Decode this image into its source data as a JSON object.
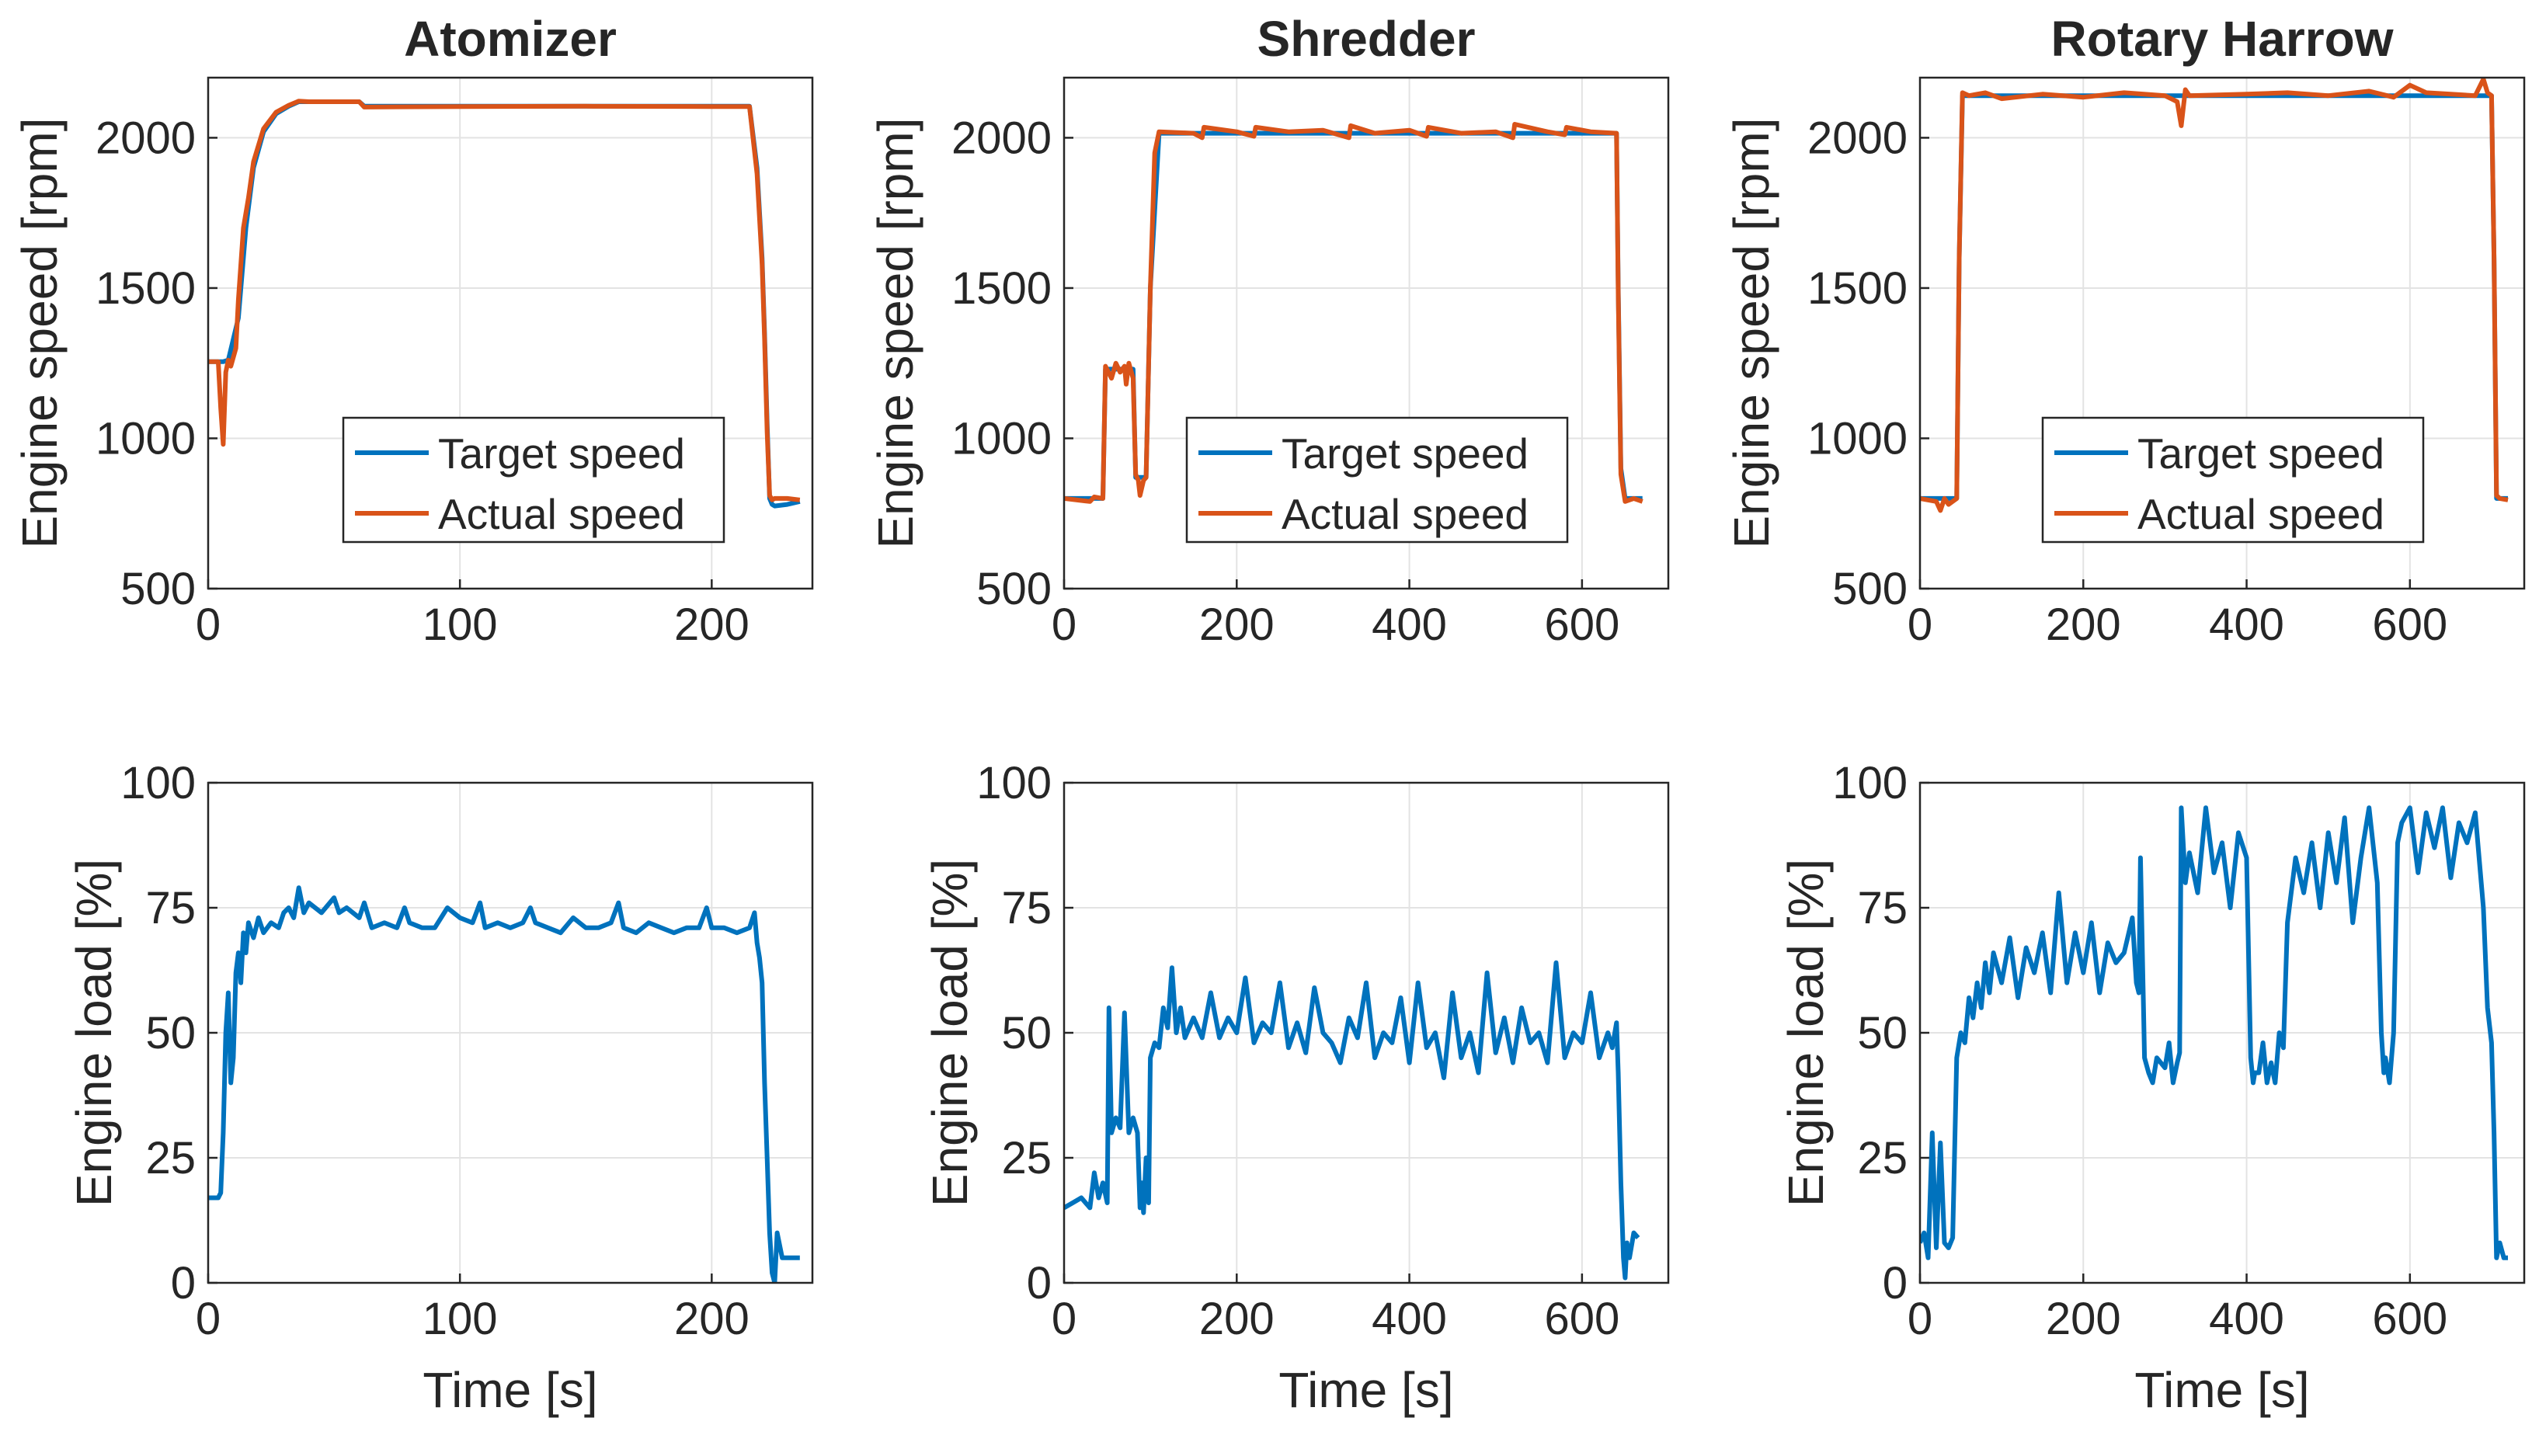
{
  "colors": {
    "target": "#0072BD",
    "actual": "#D95319",
    "axis": "#262626",
    "grid": "#e3e3e3"
  },
  "chart_data": [
    {
      "type": "line",
      "title": "Atomizer",
      "xlabel": "",
      "ylabel": "Engine speed [rpm]",
      "xlim": [
        0,
        240
      ],
      "ylim": [
        500,
        2200
      ],
      "xticks": [
        "0",
        "100",
        "200"
      ],
      "yticks": [
        "500",
        "1000",
        "1500",
        "2000"
      ],
      "legend": [
        "Target speed",
        "Actual speed"
      ],
      "legend_position": "bottom-center",
      "series": [
        {
          "name": "Target speed",
          "x": [
            0,
            6,
            8,
            12,
            15,
            18,
            22,
            27,
            32,
            36,
            40,
            60,
            62,
            100,
            150,
            200,
            215,
            218,
            220,
            221,
            222,
            223,
            224,
            225,
            230,
            235
          ],
          "y": [
            1255,
            1255,
            1260,
            1400,
            1700,
            1900,
            2020,
            2080,
            2105,
            2120,
            2120,
            2120,
            2105,
            2105,
            2105,
            2105,
            2105,
            1900,
            1600,
            1350,
            1050,
            800,
            780,
            775,
            780,
            790
          ]
        },
        {
          "name": "Actual speed",
          "x": [
            0,
            4,
            5,
            6,
            7,
            8,
            9,
            11,
            12,
            14,
            16,
            18,
            22,
            27,
            32,
            36,
            40,
            60,
            62,
            100,
            150,
            200,
            215,
            218,
            220,
            221,
            222,
            223,
            224,
            225,
            230,
            235
          ],
          "y": [
            1255,
            1255,
            1100,
            980,
            1220,
            1260,
            1240,
            1300,
            1460,
            1700,
            1800,
            1920,
            2030,
            2085,
            2108,
            2122,
            2120,
            2120,
            2102,
            2104,
            2105,
            2104,
            2104,
            1880,
            1580,
            1330,
            1020,
            810,
            795,
            800,
            800,
            795
          ]
        }
      ]
    },
    {
      "type": "line",
      "title": "Shredder",
      "xlabel": "",
      "ylabel": "Engine speed [rpm]",
      "xlim": [
        0,
        700
      ],
      "ylim": [
        500,
        2200
      ],
      "xticks": [
        "0",
        "200",
        "400",
        "600"
      ],
      "yticks": [
        "500",
        "1000",
        "1500",
        "2000"
      ],
      "legend": [
        "Target speed",
        "Actual speed"
      ],
      "legend_position": "bottom-right",
      "series": [
        {
          "name": "Target speed",
          "x": [
            0,
            45,
            48,
            80,
            83,
            95,
            100,
            110,
            640,
            642,
            645,
            650,
            670
          ],
          "y": [
            800,
            800,
            1230,
            1230,
            870,
            870,
            1500,
            2015,
            2015,
            1500,
            900,
            800,
            800
          ]
        },
        {
          "name": "Actual speed",
          "x": [
            0,
            30,
            35,
            45,
            48,
            55,
            60,
            65,
            70,
            72,
            75,
            80,
            83,
            86,
            88,
            92,
            95,
            100,
            105,
            110,
            150,
            160,
            162,
            200,
            220,
            222,
            260,
            300,
            330,
            332,
            360,
            400,
            420,
            422,
            460,
            500,
            520,
            522,
            560,
            580,
            582,
            610,
            640,
            642,
            645,
            650,
            660,
            670
          ],
          "y": [
            800,
            790,
            805,
            800,
            1240,
            1200,
            1250,
            1220,
            1240,
            1180,
            1250,
            1200,
            880,
            860,
            810,
            860,
            870,
            1500,
            1950,
            2020,
            2015,
            2000,
            2035,
            2020,
            2005,
            2035,
            2020,
            2025,
            2000,
            2040,
            2015,
            2025,
            2005,
            2035,
            2015,
            2020,
            2000,
            2045,
            2020,
            2010,
            2035,
            2020,
            2015,
            1480,
            880,
            790,
            800,
            790
          ]
        }
      ]
    },
    {
      "type": "line",
      "title": "Rotary Harrow",
      "xlabel": "",
      "ylabel": "Engine speed [rpm]",
      "xlim": [
        0,
        740
      ],
      "ylim": [
        500,
        2200
      ],
      "xticks": [
        "0",
        "200",
        "400",
        "600"
      ],
      "yticks": [
        "500",
        "1000",
        "1500",
        "2000"
      ],
      "legend": [
        "Target speed",
        "Actual speed"
      ],
      "legend_position": "bottom-right",
      "series": [
        {
          "name": "Target speed",
          "x": [
            0,
            45,
            48,
            52,
            700,
            703,
            706,
            720
          ],
          "y": [
            800,
            800,
            1600,
            2140,
            2140,
            1600,
            800,
            800
          ]
        },
        {
          "name": "Actual speed",
          "x": [
            0,
            20,
            25,
            30,
            35,
            45,
            48,
            52,
            60,
            80,
            100,
            150,
            200,
            250,
            300,
            315,
            320,
            325,
            330,
            400,
            450,
            500,
            550,
            580,
            600,
            620,
            650,
            680,
            690,
            695,
            700,
            703,
            706,
            710,
            720
          ],
          "y": [
            800,
            790,
            760,
            800,
            780,
            800,
            1600,
            2150,
            2140,
            2150,
            2130,
            2145,
            2135,
            2150,
            2140,
            2120,
            2040,
            2160,
            2140,
            2145,
            2150,
            2140,
            2155,
            2135,
            2175,
            2150,
            2145,
            2140,
            2195,
            2150,
            2140,
            1600,
            810,
            800,
            795
          ]
        }
      ]
    },
    {
      "type": "line",
      "title": "",
      "xlabel": "Time [s]",
      "ylabel": "Engine load [%]",
      "xlim": [
        0,
        240
      ],
      "ylim": [
        0,
        100
      ],
      "xticks": [
        "0",
        "100",
        "200"
      ],
      "yticks": [
        "0",
        "25",
        "50",
        "75",
        "100"
      ],
      "series": [
        {
          "name": "Engine load",
          "x": [
            0,
            4,
            5,
            6,
            7,
            8,
            9,
            10,
            11,
            12,
            13,
            14,
            15,
            16,
            18,
            20,
            22,
            25,
            28,
            30,
            32,
            34,
            36,
            38,
            40,
            45,
            50,
            52,
            55,
            60,
            62,
            65,
            70,
            75,
            78,
            80,
            85,
            90,
            95,
            100,
            105,
            108,
            110,
            115,
            120,
            125,
            128,
            130,
            135,
            140,
            145,
            150,
            155,
            160,
            163,
            165,
            170,
            175,
            180,
            185,
            190,
            195,
            198,
            200,
            205,
            210,
            215,
            217,
            218,
            219,
            220,
            221,
            222,
            223,
            224,
            225,
            226,
            228,
            230,
            235
          ],
          "y": [
            17,
            17,
            18,
            30,
            50,
            58,
            40,
            45,
            62,
            66,
            60,
            70,
            66,
            72,
            69,
            73,
            70,
            72,
            71,
            74,
            75,
            73,
            79,
            74,
            76,
            74,
            77,
            74,
            75,
            73,
            76,
            71,
            72,
            71,
            75,
            72,
            71,
            71,
            75,
            73,
            72,
            76,
            71,
            72,
            71,
            72,
            75,
            72,
            71,
            70,
            73,
            71,
            71,
            72,
            76,
            71,
            70,
            72,
            71,
            70,
            71,
            71,
            75,
            71,
            71,
            70,
            71,
            74,
            68,
            65,
            60,
            40,
            25,
            10,
            2,
            0,
            10,
            5,
            5,
            5
          ]
        }
      ]
    },
    {
      "type": "line",
      "title": "",
      "xlabel": "Time [s]",
      "ylabel": "Engine load [%]",
      "xlim": [
        0,
        700
      ],
      "ylim": [
        0,
        100
      ],
      "xticks": [
        "0",
        "200",
        "400",
        "600"
      ],
      "yticks": [
        "0",
        "25",
        "50",
        "75",
        "100"
      ],
      "series": [
        {
          "name": "Engine load",
          "x": [
            0,
            10,
            20,
            30,
            35,
            40,
            45,
            50,
            52,
            55,
            60,
            65,
            70,
            75,
            80,
            85,
            88,
            90,
            92,
            95,
            98,
            100,
            105,
            110,
            115,
            120,
            125,
            130,
            135,
            140,
            150,
            160,
            170,
            180,
            190,
            200,
            210,
            220,
            230,
            240,
            250,
            260,
            270,
            280,
            290,
            300,
            310,
            320,
            330,
            340,
            350,
            360,
            370,
            380,
            390,
            400,
            410,
            420,
            430,
            440,
            450,
            460,
            470,
            480,
            490,
            500,
            510,
            520,
            530,
            540,
            550,
            560,
            570,
            580,
            590,
            600,
            610,
            620,
            630,
            635,
            640,
            642,
            645,
            648,
            650,
            652,
            655,
            660,
            665
          ],
          "y": [
            15,
            16,
            17,
            15,
            22,
            17,
            20,
            16,
            55,
            30,
            33,
            31,
            54,
            30,
            33,
            30,
            15,
            20,
            14,
            25,
            16,
            45,
            48,
            47,
            55,
            51,
            63,
            50,
            55,
            49,
            53,
            49,
            58,
            49,
            53,
            50,
            61,
            48,
            52,
            50,
            60,
            47,
            52,
            46,
            59,
            50,
            48,
            44,
            53,
            49,
            60,
            45,
            50,
            48,
            57,
            44,
            60,
            47,
            50,
            41,
            58,
            45,
            50,
            42,
            62,
            46,
            53,
            44,
            55,
            48,
            50,
            44,
            64,
            45,
            50,
            48,
            58,
            45,
            50,
            47,
            52,
            42,
            20,
            5,
            1,
            8,
            5,
            10,
            9
          ]
        }
      ]
    },
    {
      "type": "line",
      "title": "",
      "xlabel": "Time [s]",
      "ylabel": "Engine load [%]",
      "xlim": [
        0,
        740
      ],
      "ylim": [
        0,
        100
      ],
      "xticks": [
        "0",
        "200",
        "400",
        "600"
      ],
      "yticks": [
        "0",
        "25",
        "50",
        "75",
        "100"
      ],
      "series": [
        {
          "name": "Engine load",
          "x": [
            0,
            5,
            10,
            15,
            20,
            25,
            30,
            35,
            40,
            45,
            50,
            55,
            60,
            65,
            70,
            75,
            80,
            85,
            90,
            100,
            110,
            120,
            130,
            140,
            150,
            160,
            170,
            180,
            190,
            200,
            210,
            220,
            230,
            240,
            250,
            260,
            265,
            268,
            270,
            275,
            280,
            285,
            290,
            300,
            305,
            310,
            315,
            318,
            320,
            325,
            330,
            340,
            350,
            360,
            370,
            380,
            390,
            400,
            405,
            408,
            410,
            415,
            420,
            425,
            430,
            435,
            440,
            445,
            450,
            460,
            470,
            480,
            490,
            500,
            510,
            520,
            530,
            540,
            550,
            560,
            565,
            568,
            570,
            575,
            580,
            585,
            590,
            600,
            610,
            620,
            630,
            640,
            650,
            660,
            670,
            680,
            690,
            695,
            700,
            703,
            706,
            710,
            715,
            720
          ],
          "y": [
            8,
            10,
            5,
            30,
            7,
            28,
            8,
            7,
            9,
            45,
            50,
            48,
            57,
            53,
            60,
            55,
            64,
            58,
            66,
            60,
            69,
            57,
            67,
            62,
            70,
            58,
            78,
            60,
            70,
            62,
            72,
            58,
            68,
            64,
            66,
            73,
            60,
            58,
            85,
            45,
            42,
            40,
            45,
            43,
            48,
            40,
            44,
            46,
            95,
            80,
            86,
            78,
            95,
            82,
            88,
            75,
            90,
            85,
            45,
            40,
            42,
            42,
            48,
            40,
            44,
            40,
            50,
            47,
            72,
            85,
            78,
            88,
            75,
            90,
            80,
            93,
            72,
            85,
            95,
            80,
            50,
            42,
            45,
            40,
            50,
            88,
            92,
            95,
            82,
            94,
            87,
            95,
            81,
            92,
            88,
            94,
            75,
            55,
            48,
            30,
            5,
            8,
            5,
            5
          ]
        }
      ]
    }
  ]
}
